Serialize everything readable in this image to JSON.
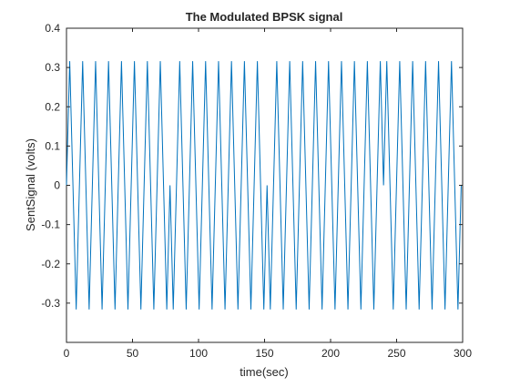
{
  "chart_data": {
    "type": "line",
    "title": "The Modulated BPSK signal",
    "xlabel": "time(sec)",
    "ylabel": "SentSignal (volts)",
    "xlim": [
      0,
      300
    ],
    "ylim": [
      -0.4,
      0.4
    ],
    "xticks": [
      0,
      50,
      100,
      150,
      200,
      250,
      300
    ],
    "yticks": [
      -0.3,
      -0.2,
      -0.1,
      0,
      0.1,
      0.2,
      0.3
    ],
    "xtick_labels": [
      "0",
      "50",
      "100",
      "150",
      "200",
      "250",
      "300"
    ],
    "ytick_labels": [
      "-0.3",
      "-0.2",
      "-0.1",
      "0",
      "0.1",
      "0.2",
      "0.3"
    ],
    "grid": false,
    "series": [
      {
        "amplitude": 0.3162,
        "period": 9.8,
        "phase_changes_at": [
          80,
          150,
          240,
          300
        ],
        "color": "#0072bd"
      }
    ]
  },
  "colors": {
    "axis": "#262626",
    "line": "#0072bd",
    "background": "#ffffff"
  }
}
